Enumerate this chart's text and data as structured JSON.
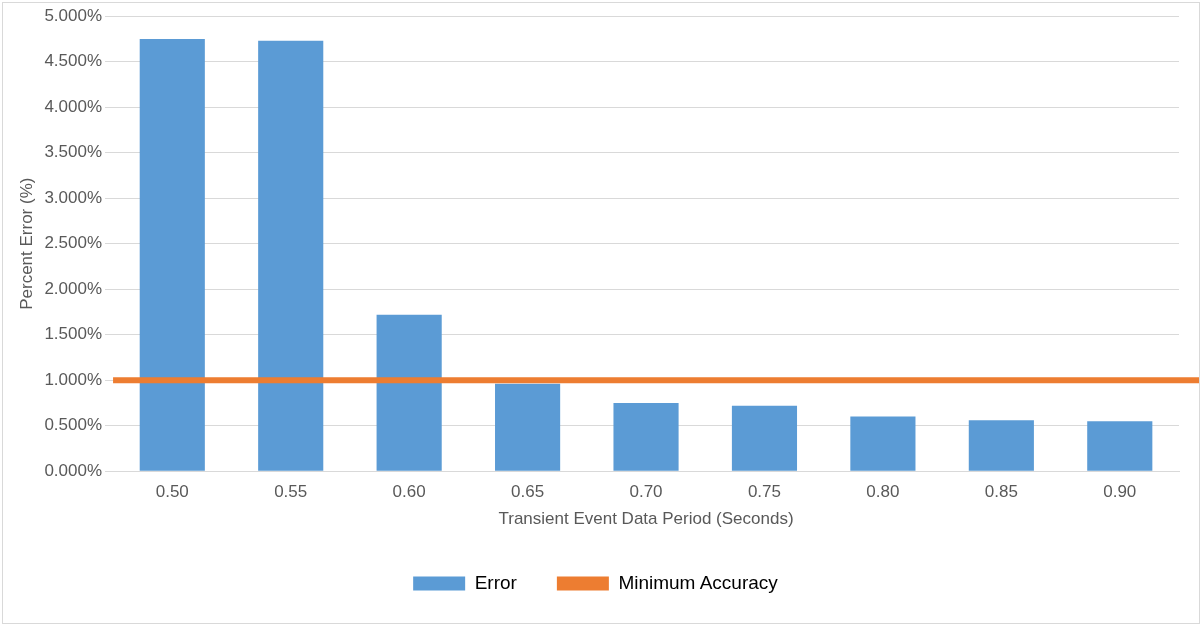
{
  "chart_data": {
    "type": "bar",
    "xlabel": "Transient Event Data Period (Seconds)",
    "ylabel": "Percent Error (%)",
    "categories": [
      "0.50",
      "0.55",
      "0.60",
      "0.65",
      "0.70",
      "0.75",
      "0.80",
      "0.85",
      "0.90"
    ],
    "series": [
      {
        "name": "Error",
        "color": "#5b9bd5",
        "values": [
          4.75,
          4.73,
          1.72,
          0.96,
          0.75,
          0.72,
          0.6,
          0.56,
          0.55
        ]
      }
    ],
    "ref_lines": [
      {
        "axis": "y",
        "value": 1,
        "label": "Minimum Accuracy",
        "color": "#ed7d31"
      }
    ],
    "ylim": [
      0,
      5
    ],
    "yticks": [
      {
        "value": 0,
        "label": "0.000%"
      },
      {
        "value": 0.5,
        "label": "0.500%"
      },
      {
        "value": 1,
        "label": "1.000%"
      },
      {
        "value": 1.5,
        "label": "1.500%"
      },
      {
        "value": 2,
        "label": "2.000%"
      },
      {
        "value": 2.5,
        "label": "2.500%"
      },
      {
        "value": 3,
        "label": "3.000%"
      },
      {
        "value": 3.5,
        "label": "3.500%"
      },
      {
        "value": 4,
        "label": "4.000%"
      },
      {
        "value": 4.5,
        "label": "4.500%"
      },
      {
        "value": 5,
        "label": "5.000%"
      }
    ],
    "grid": "y",
    "legend": "bottom"
  }
}
